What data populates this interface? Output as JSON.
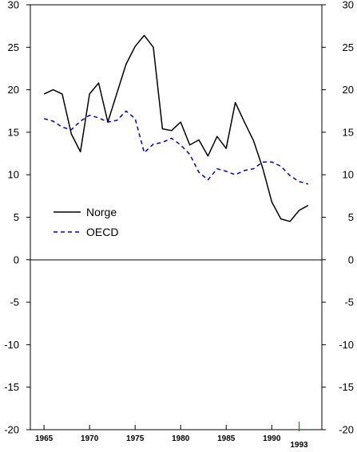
{
  "chart_data": {
    "type": "line",
    "x": [
      1965,
      1966,
      1967,
      1968,
      1969,
      1970,
      1971,
      1972,
      1973,
      1974,
      1975,
      1976,
      1977,
      1978,
      1979,
      1980,
      1981,
      1982,
      1983,
      1984,
      1985,
      1986,
      1987,
      1988,
      1989,
      1990,
      1991,
      1992,
      1993,
      1994
    ],
    "series": [
      {
        "name": "Norge",
        "color": "#000000",
        "style": "solid",
        "values": [
          19.5,
          20.0,
          19.5,
          14.8,
          12.7,
          19.5,
          20.8,
          16.2,
          19.6,
          23.0,
          25.1,
          26.4,
          25.0,
          15.4,
          15.2,
          16.2,
          13.5,
          14.1,
          12.2,
          14.5,
          13.1,
          18.5,
          16.2,
          14.0,
          10.8,
          6.8,
          4.8,
          4.5,
          5.8,
          6.4
        ]
      },
      {
        "name": "OECD",
        "color": "#0000cc",
        "style": "dashed",
        "values": [
          16.6,
          16.3,
          15.6,
          15.3,
          16.3,
          17.0,
          16.7,
          16.2,
          16.4,
          17.5,
          16.6,
          12.6,
          13.6,
          13.8,
          14.3,
          13.5,
          12.4,
          10.3,
          9.4,
          10.7,
          10.4,
          10.0,
          10.5,
          10.7,
          11.5,
          11.5,
          11.0,
          9.9,
          9.2,
          8.9
        ]
      }
    ],
    "xticks": [
      1965,
      1970,
      1975,
      1980,
      1985,
      1990
    ],
    "xtick_labels": [
      "1965",
      "1970",
      "1975",
      "1980",
      "1985",
      "1990"
    ],
    "extra_xtick": {
      "value": 1993,
      "label": "1993",
      "color": "#008000"
    },
    "yticks": [
      -20,
      -15,
      -10,
      -5,
      0,
      5,
      10,
      15,
      20,
      25,
      30
    ],
    "ytick_labels": [
      "-20",
      "-15",
      "-10",
      "-5",
      "0",
      "5",
      "10",
      "15",
      "20",
      "25",
      "30"
    ],
    "ylim": [
      -20,
      30
    ],
    "xlim": [
      1963.5,
      1995.5
    ],
    "zero_line": true,
    "grid": false,
    "legend_position": "left, lower middle of upper panel",
    "title": "",
    "xlabel": "",
    "ylabel": ""
  }
}
